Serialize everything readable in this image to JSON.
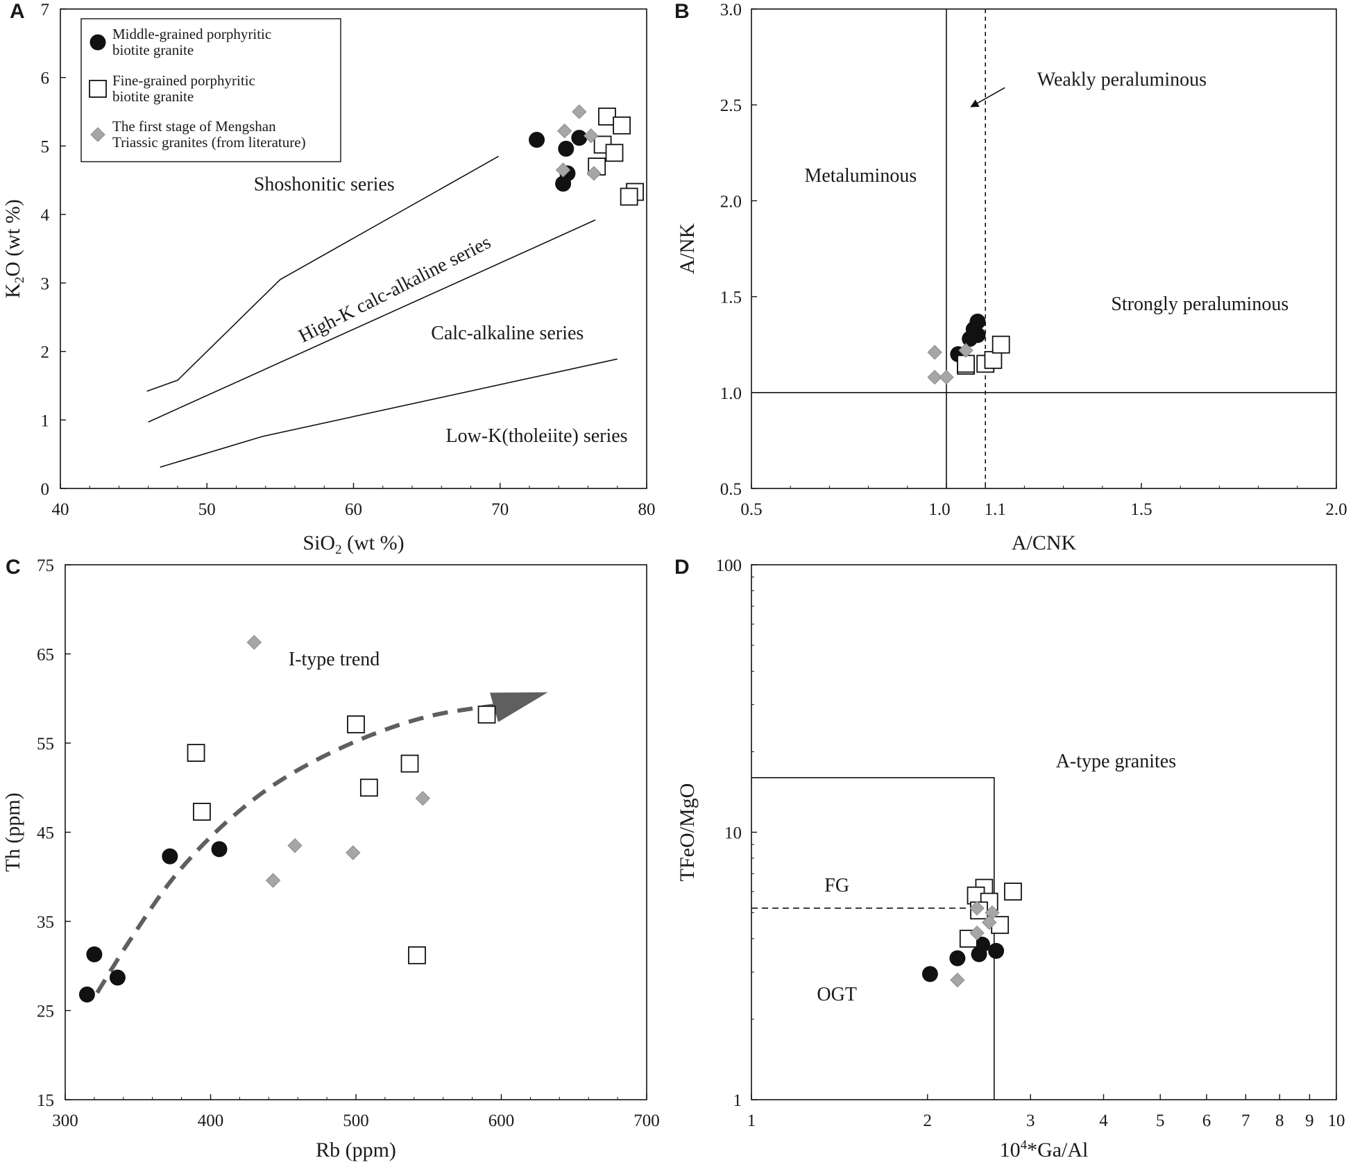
{
  "figure": {
    "colors": {
      "ink": "#111111",
      "diamond": "#a6a6a6",
      "trend_arrow": "#5f5f5f",
      "background": "#ffffff"
    }
  },
  "chart_data": [
    {
      "id": "A",
      "panel_label": "A",
      "type": "scatter",
      "xlim": [
        40,
        80
      ],
      "ylim": [
        0,
        7
      ],
      "xticks": [
        40,
        50,
        60,
        70,
        80
      ],
      "yticks": [
        0,
        1,
        2,
        3,
        4,
        5,
        6,
        7
      ],
      "x_label": "SiO",
      "x_label_sub": "2",
      "x_label_tail": " (wt %)",
      "y_label": "K",
      "y_label_sub": "2",
      "y_label_tail": "O (wt %)",
      "boundaries": [
        [
          [
            45.9,
            1.42
          ],
          [
            48.0,
            1.58
          ],
          [
            55.0,
            3.05
          ],
          [
            69.9,
            4.85
          ]
        ],
        [
          [
            46.0,
            0.97
          ],
          [
            76.5,
            3.92
          ]
        ],
        [
          [
            46.8,
            0.31
          ],
          [
            53.8,
            0.76
          ],
          [
            78.0,
            1.89
          ]
        ]
      ],
      "regions": [
        {
          "text": "Shoshonitic series",
          "x": 58.0,
          "y": 4.35,
          "rotate": 0
        },
        {
          "text": "High-K calc-alkaline series",
          "x": 63.0,
          "y": 2.83,
          "rotate": -27
        },
        {
          "text": "Calc-alkaline series",
          "x": 70.5,
          "y": 2.18,
          "rotate": 0
        },
        {
          "text": "Low-K(tholeiite) series",
          "x": 72.5,
          "y": 0.68,
          "rotate": 0
        }
      ],
      "legend": {
        "items": [
          {
            "marker": "circle",
            "line1": "Middle-grained  porphyritic",
            "line2": "biotite granite"
          },
          {
            "marker": "square",
            "line1": "Fine-grained  porphyritic",
            "line2": "biotite granite"
          },
          {
            "marker": "diamond",
            "line1": "The first stage of Mengshan",
            "line2": "Triassic granites (from literature)"
          }
        ]
      },
      "series": [
        {
          "name": "Middle-grained porphyritic biotite granite",
          "marker": "circle",
          "points": [
            [
              72.5,
              5.09
            ],
            [
              74.5,
              4.96
            ],
            [
              75.4,
              5.12
            ],
            [
              74.6,
              4.6
            ],
            [
              74.3,
              4.45
            ]
          ]
        },
        {
          "name": "Fine-grained porphyritic biotite granite",
          "marker": "square",
          "points": [
            [
              77.3,
              5.43
            ],
            [
              77.0,
              5.02
            ],
            [
              78.3,
              5.3
            ],
            [
              77.8,
              4.9
            ],
            [
              76.6,
              4.7
            ],
            [
              79.2,
              4.33
            ],
            [
              78.8,
              4.26
            ]
          ]
        },
        {
          "name": "The first stage of Mengshan Triassic granites (from literature)",
          "marker": "diamond",
          "points": [
            [
              75.4,
              5.5
            ],
            [
              74.4,
              5.22
            ],
            [
              76.2,
              5.15
            ],
            [
              74.3,
              4.65
            ],
            [
              76.4,
              4.6
            ]
          ]
        }
      ]
    },
    {
      "id": "B",
      "panel_label": "B",
      "type": "scatter",
      "xlim": [
        0.5,
        2.0
      ],
      "ylim": [
        0.5,
        3.0
      ],
      "xticks": [
        0.5,
        1.0,
        1.1,
        1.5,
        2.0
      ],
      "xtick_labels": [
        "0.5",
        "1.0",
        "1.1",
        "1.5",
        "2.0"
      ],
      "yticks": [
        0.5,
        1.0,
        1.5,
        2.0,
        2.5,
        3.0
      ],
      "ytick_labels": [
        "0.5",
        "1.0",
        "1.5",
        "2.0",
        "2.5",
        "3.0"
      ],
      "x_label": "A/CNK",
      "y_label": "A/NK",
      "reference_lines": [
        {
          "axis": "x",
          "value": 1.0,
          "style": "solid"
        },
        {
          "axis": "x",
          "value": 1.1,
          "style": "dashed"
        },
        {
          "axis": "y",
          "value": 1.0,
          "style": "solid"
        }
      ],
      "regions": [
        {
          "text": "Metaluminous",
          "x": 0.78,
          "y": 2.1
        },
        {
          "text": "Strongly peraluminous",
          "x": 1.65,
          "y": 1.43
        },
        {
          "text": "Weakly peraluminous",
          "x": 1.45,
          "y": 2.6
        }
      ],
      "arrow": {
        "from": [
          1.15,
          2.59
        ],
        "to": [
          1.063,
          2.49
        ]
      },
      "series": [
        {
          "name": "Middle-grained porphyritic biotite granite",
          "marker": "circle",
          "points": [
            [
              1.08,
              1.37
            ],
            [
              1.07,
              1.33
            ],
            [
              1.06,
              1.28
            ],
            [
              1.08,
              1.3
            ],
            [
              1.03,
              1.2
            ]
          ]
        },
        {
          "name": "Fine-grained porphyritic biotite granite",
          "marker": "square",
          "points": [
            [
              1.05,
              1.14
            ],
            [
              1.05,
              1.15
            ],
            [
              1.1,
              1.15
            ],
            [
              1.12,
              1.17
            ],
            [
              1.14,
              1.25
            ]
          ]
        },
        {
          "name": "The first stage of Mengshan Triassic granites (from literature)",
          "marker": "diamond",
          "points": [
            [
              0.97,
              1.21
            ],
            [
              0.97,
              1.08
            ],
            [
              1.0,
              1.08
            ],
            [
              1.05,
              1.22
            ]
          ]
        }
      ]
    },
    {
      "id": "C",
      "panel_label": "C",
      "type": "scatter",
      "xlim": [
        300,
        700
      ],
      "ylim": [
        15,
        75
      ],
      "xticks": [
        300,
        400,
        500,
        600,
        700
      ],
      "yticks": [
        15,
        25,
        35,
        45,
        55,
        65,
        75
      ],
      "x_label": "Rb (ppm)",
      "y_label": "Th (ppm)",
      "trend_label": {
        "text": "I-type trend",
        "x": 485,
        "y": 63.7
      },
      "trend_curve": [
        [
          322,
          27
        ],
        [
          345,
          33
        ],
        [
          375,
          40
        ],
        [
          410,
          46
        ],
        [
          450,
          51
        ],
        [
          500,
          55.2
        ],
        [
          550,
          58
        ],
        [
          600,
          59.3
        ]
      ],
      "trend_arrow_head": {
        "tip": [
          632,
          60.7
        ],
        "base": [
          595,
          59.0
        ]
      },
      "series": [
        {
          "name": "Middle-grained porphyritic biotite granite",
          "marker": "circle",
          "points": [
            [
              315,
              26.8
            ],
            [
              320,
              31.3
            ],
            [
              336,
              28.7
            ],
            [
              372,
              42.3
            ],
            [
              406,
              43.1
            ]
          ]
        },
        {
          "name": "Fine-grained porphyritic biotite granite",
          "marker": "square",
          "points": [
            [
              390,
              53.9
            ],
            [
              394,
              47.3
            ],
            [
              500,
              57.1
            ],
            [
              509,
              50.0
            ],
            [
              537,
              52.7
            ],
            [
              542,
              31.2
            ],
            [
              590,
              58.2
            ]
          ]
        },
        {
          "name": "The first stage of Mengshan Triassic granites (from literature)",
          "marker": "diamond",
          "points": [
            [
              430,
              66.3
            ],
            [
              443,
              39.6
            ],
            [
              458,
              43.5
            ],
            [
              498,
              42.7
            ],
            [
              546,
              48.8
            ]
          ]
        }
      ]
    },
    {
      "id": "D",
      "panel_label": "D",
      "type": "scatter",
      "x_scale": "log",
      "y_scale": "log",
      "xlim": [
        1,
        10
      ],
      "ylim": [
        1,
        100
      ],
      "xticks": [
        1,
        2,
        3,
        4,
        5,
        6,
        7,
        8,
        9,
        10
      ],
      "yticks": [
        1,
        10,
        100
      ],
      "x_label": "10",
      "x_label_sup": "4",
      "x_label_tail": "*Ga/Al",
      "y_label": "TFeO/MgO",
      "field_lines": [
        {
          "style": "solid",
          "points": [
            [
              1,
              16
            ],
            [
              2.6,
              16
            ],
            [
              2.6,
              1
            ]
          ]
        },
        {
          "style": "dashed",
          "points": [
            [
              1,
              5.2
            ],
            [
              2.6,
              5.2
            ]
          ]
        }
      ],
      "regions": [
        {
          "text": "A-type granites",
          "x": 4.2,
          "y": 17.5
        },
        {
          "text": "FG",
          "x": 1.4,
          "y": 6.0
        },
        {
          "text": "OGT",
          "x": 1.4,
          "y": 2.35
        }
      ],
      "series": [
        {
          "name": "Middle-grained porphyritic biotite granite",
          "marker": "circle",
          "points": [
            [
              2.02,
              2.95
            ],
            [
              2.25,
              3.38
            ],
            [
              2.45,
              3.5
            ],
            [
              2.48,
              3.8
            ],
            [
              2.62,
              3.6
            ]
          ]
        },
        {
          "name": "Fine-grained porphyritic biotite granite",
          "marker": "square",
          "points": [
            [
              2.5,
              6.2
            ],
            [
              2.42,
              5.8
            ],
            [
              2.55,
              5.5
            ],
            [
              2.45,
              5.1
            ],
            [
              2.8,
              6.0
            ],
            [
              2.66,
              4.5
            ],
            [
              2.35,
              4.0
            ]
          ]
        },
        {
          "name": "The first stage of Mengshan Triassic granites (from literature)",
          "marker": "diamond",
          "points": [
            [
              2.43,
              5.2
            ],
            [
              2.58,
              5.0
            ],
            [
              2.43,
              4.2
            ],
            [
              2.55,
              4.6
            ],
            [
              2.25,
              2.8
            ]
          ]
        }
      ]
    }
  ]
}
